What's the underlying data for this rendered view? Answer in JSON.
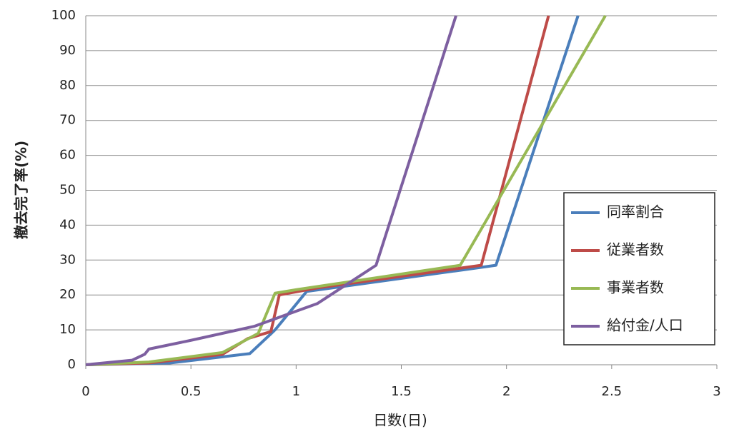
{
  "chart_data": {
    "type": "line",
    "xlabel": "日数(日)",
    "ylabel": "撤去完了率(%)",
    "xlim": [
      0,
      3
    ],
    "xticks": [
      0,
      0.5,
      1,
      1.5,
      2,
      2.5,
      3
    ],
    "ylim": [
      0,
      100
    ],
    "yticks": [
      0,
      10,
      20,
      30,
      40,
      50,
      60,
      70,
      80,
      90,
      100
    ],
    "grid": true,
    "legend": "lower right",
    "series": [
      {
        "name": "同率割合",
        "color": "#4a7ebb",
        "x": [
          0,
          0.4,
          0.78,
          0.9,
          1.05,
          1.95,
          2.34
        ],
        "values": [
          0,
          0.5,
          3.2,
          10,
          21,
          28.5,
          100
        ]
      },
      {
        "name": "従業者数",
        "color": "#be4b48",
        "x": [
          0,
          0.3,
          0.65,
          0.77,
          0.88,
          0.92,
          1.1,
          1.88,
          2.2
        ],
        "values": [
          0,
          0.5,
          3,
          7.5,
          9.5,
          20,
          22,
          28.5,
          100
        ]
      },
      {
        "name": "事業者数",
        "color": "#98b954",
        "x": [
          0,
          0.3,
          0.65,
          0.82,
          0.9,
          1.0,
          1.78,
          2.47
        ],
        "values": [
          0,
          0.8,
          3.5,
          9,
          20.5,
          21.5,
          28.5,
          100
        ]
      },
      {
        "name": "給付金/人口",
        "color": "#7d5fa0",
        "x": [
          0,
          0.22,
          0.28,
          0.3,
          0.5,
          0.8,
          1.1,
          1.38,
          1.76
        ],
        "values": [
          0,
          1.3,
          3,
          4.5,
          7,
          11,
          17.5,
          28.5,
          100
        ]
      }
    ]
  }
}
